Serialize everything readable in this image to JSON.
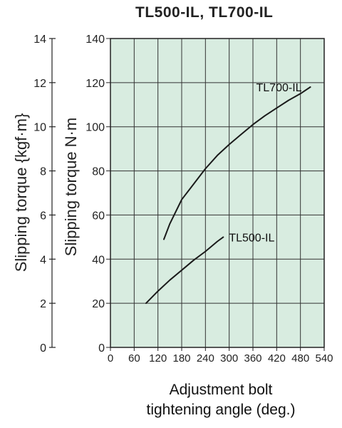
{
  "chart_data": {
    "type": "line",
    "title": "TL500-IL, TL700-IL",
    "xlabel_lines": [
      "Adjustment bolt",
      "tightening angle (deg.)"
    ],
    "ylabel": "Slipping torque N·m",
    "ylabel_secondary": "Slipping torque {kgf·m}",
    "xlim": [
      0,
      540
    ],
    "ylim": [
      0,
      140
    ],
    "y2lim": [
      0,
      14
    ],
    "x_ticks": [
      0,
      60,
      120,
      180,
      240,
      300,
      360,
      420,
      480,
      540
    ],
    "y_ticks": [
      0,
      20,
      40,
      60,
      80,
      100,
      120,
      140
    ],
    "y2_ticks": [
      0,
      2,
      4,
      6,
      8,
      10,
      12,
      14
    ],
    "grid": true,
    "background_color": "#d8ece0",
    "line_color": "#1a1a1a",
    "series": [
      {
        "name": "TL500-IL",
        "x": [
          90,
          120,
          150,
          180,
          210,
          240,
          270,
          285
        ],
        "y": [
          20,
          25.5,
          30.5,
          35,
          39.5,
          43.5,
          48,
          50
        ]
      },
      {
        "name": "TL700-IL",
        "x": [
          135,
          150,
          180,
          210,
          240,
          270,
          300,
          330,
          360,
          390,
          420,
          450,
          480,
          505
        ],
        "y": [
          49,
          56,
          67,
          74,
          81,
          87,
          92,
          96.5,
          101,
          105,
          108.5,
          112,
          115,
          118
        ]
      }
    ]
  }
}
